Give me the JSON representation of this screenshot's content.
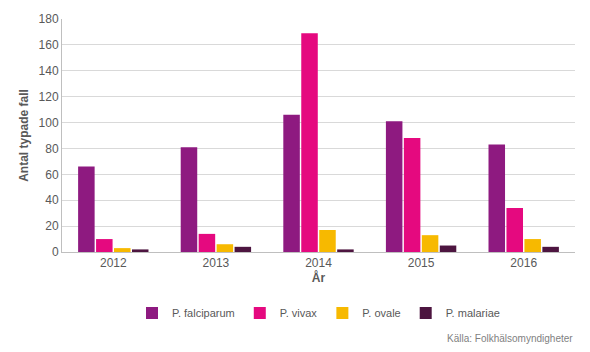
{
  "chart_data": {
    "type": "bar",
    "x_label": "År",
    "y_label": "Antal typade fall",
    "source": "Källa: Folkhälsomyndigheter",
    "categories": [
      "2012",
      "2013",
      "2014",
      "2015",
      "2016"
    ],
    "series": [
      {
        "name": "P. falciparum",
        "color": "#8e1a80",
        "values": [
          66,
          81,
          106,
          101,
          83
        ]
      },
      {
        "name": "P. vivax",
        "color": "#e5097f",
        "values": [
          10,
          14,
          169,
          88,
          34
        ]
      },
      {
        "name": "P. ovale",
        "color": "#f7b900",
        "values": [
          3,
          6,
          17,
          13,
          10
        ]
      },
      {
        "name": "P. malariae",
        "color": "#4d1540",
        "values": [
          2,
          4,
          2,
          5,
          4
        ]
      }
    ],
    "ylim": [
      0,
      180
    ],
    "yticks": [
      0,
      20,
      40,
      60,
      80,
      100,
      120,
      140,
      160,
      180
    ],
    "grid": true,
    "legend": "bottom"
  }
}
